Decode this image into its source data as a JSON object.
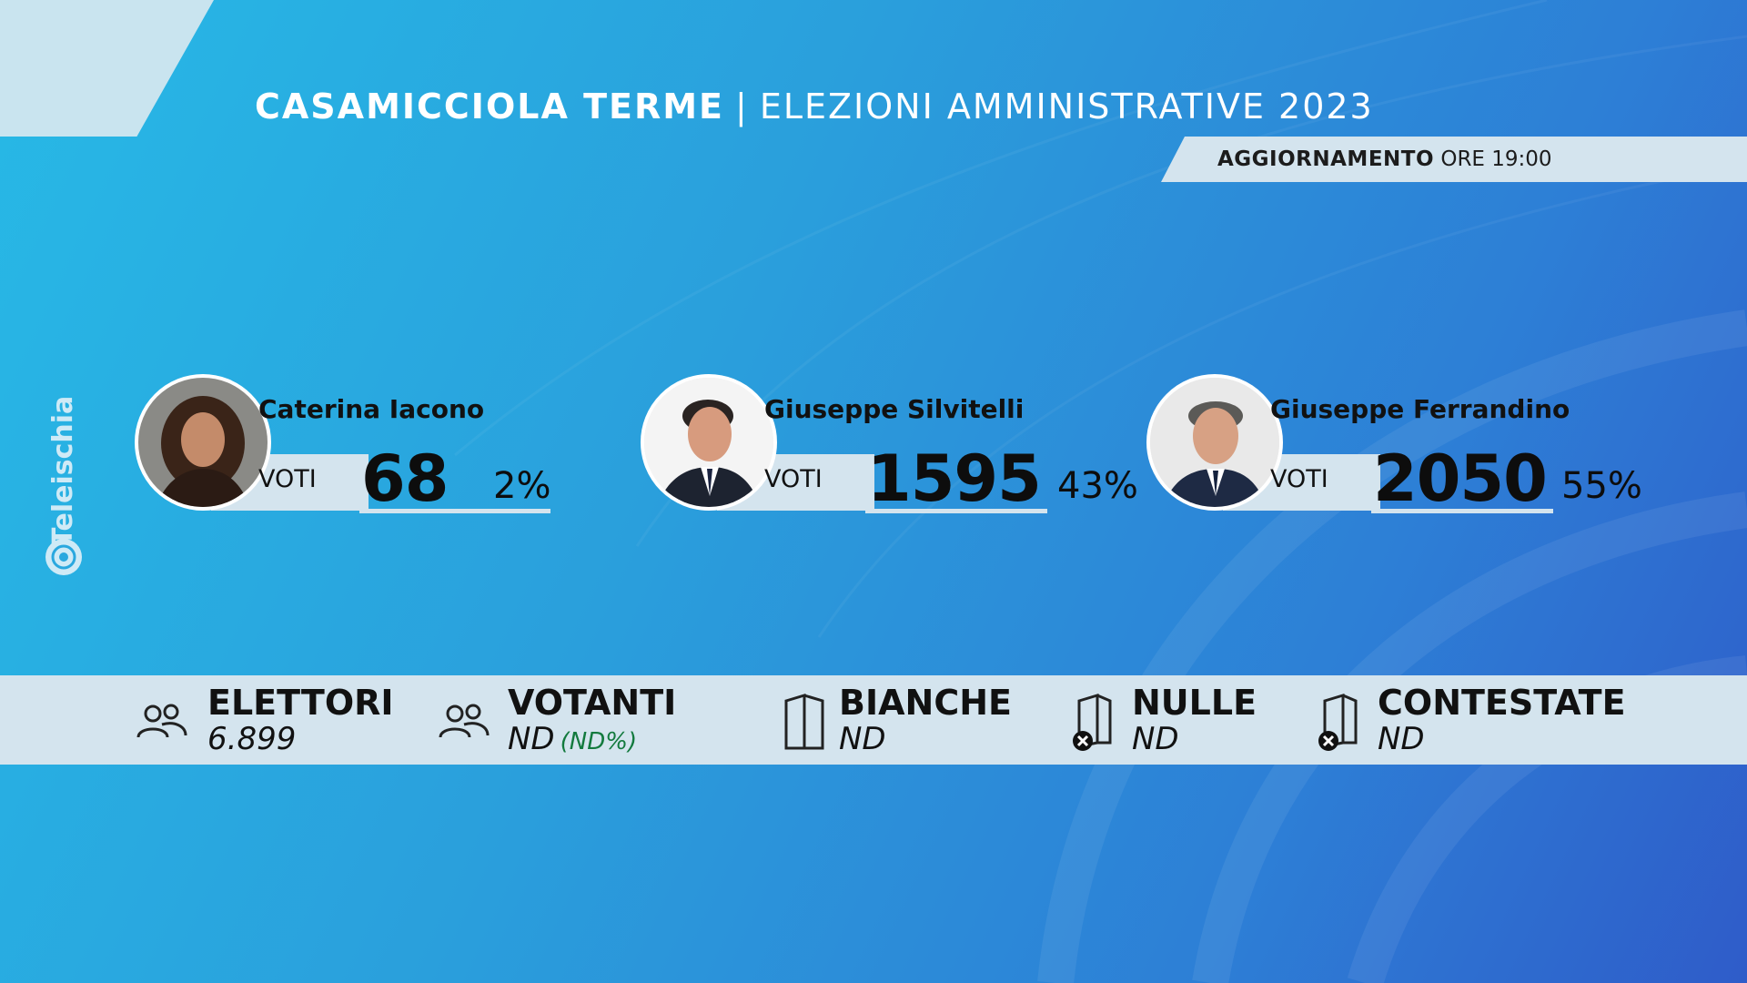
{
  "header": {
    "city": "CASAMICCIOLA TERME",
    "separator": "|",
    "subtitle": "ELEZIONI AMMINISTRATIVE 2023"
  },
  "update": {
    "label": "AGGIORNAMENTO",
    "time": "ORE 19:00"
  },
  "brand": {
    "name": "Teleischia"
  },
  "candidates": [
    {
      "name": "Caterina Iacono",
      "votes_label": "VOTI",
      "votes": "68",
      "percent": "2%"
    },
    {
      "name": "Giuseppe Silvitelli",
      "votes_label": "VOTI",
      "votes": "1595",
      "percent": "43%"
    },
    {
      "name": "Giuseppe Ferrandino",
      "votes_label": "VOTI",
      "votes": "2050",
      "percent": "55%"
    }
  ],
  "stats": {
    "elettori": {
      "label": "ELETTORI",
      "value": "6.899",
      "icon": "people-icon"
    },
    "votanti": {
      "label": "VOTANTI",
      "value": "ND",
      "percent": "(ND%)",
      "icon": "people-icon"
    },
    "bianche": {
      "label": "BIANCHE",
      "value": "ND",
      "icon": "ballot-icon"
    },
    "nulle": {
      "label": "NULLE",
      "value": "ND",
      "icon": "ballot-x-icon"
    },
    "contestate": {
      "label": "CONTESTATE",
      "value": "ND",
      "icon": "ballot-x-icon"
    }
  },
  "colors": {
    "background_start": "#27b9e6",
    "background_end": "#2f5cc9",
    "panel": "#d4e4ee",
    "percent_green": "#137a3e"
  }
}
